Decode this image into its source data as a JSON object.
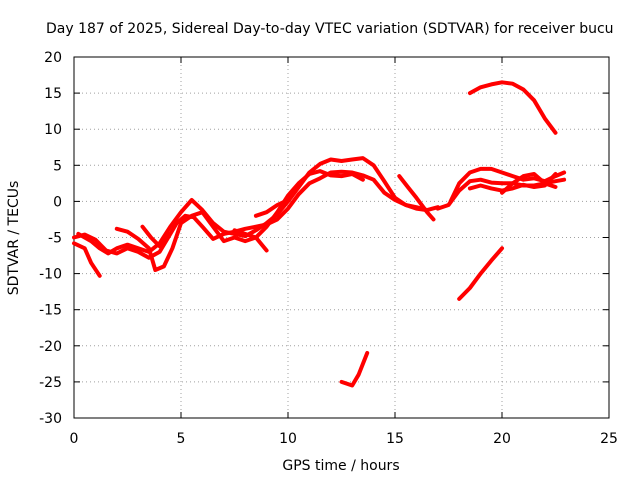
{
  "chart_data": {
    "type": "line",
    "title": "Day 187 of 2025, Sidereal Day-to-day VTEC variation (SDTVAR) for receiver bucu",
    "xlabel": "GPS time / hours",
    "ylabel": "SDTVAR / TECUs",
    "xlim": [
      0,
      25
    ],
    "ylim": [
      -30,
      20
    ],
    "xticks": [
      0,
      5,
      10,
      15,
      20,
      25
    ],
    "yticks": [
      -30,
      -25,
      -20,
      -15,
      -10,
      -5,
      0,
      5,
      10,
      15,
      20
    ],
    "grid": true,
    "color": "#ff0000",
    "series": [
      {
        "name": "trace-1",
        "points": [
          [
            0.0,
            -5.8
          ],
          [
            0.5,
            -6.5
          ],
          [
            0.8,
            -8.5
          ],
          [
            1.2,
            -10.3
          ]
        ]
      },
      {
        "name": "trace-2",
        "points": [
          [
            0.0,
            -5.0
          ],
          [
            0.5,
            -4.6
          ],
          [
            1.0,
            -5.3
          ],
          [
            1.5,
            -6.8
          ],
          [
            2.0,
            -7.2
          ],
          [
            2.5,
            -6.5
          ],
          [
            3.0,
            -7.0
          ],
          [
            3.5,
            -7.8
          ],
          [
            4.0,
            -7.0
          ],
          [
            4.4,
            -5.0
          ],
          [
            4.8,
            -3.0
          ],
          [
            5.2,
            -2.0
          ],
          [
            5.6,
            -2.2
          ],
          [
            6.0,
            -3.5
          ],
          [
            6.5,
            -5.2
          ],
          [
            7.0,
            -4.5
          ],
          [
            7.5,
            -4.2
          ],
          [
            8.0,
            -3.8
          ],
          [
            8.5,
            -3.5
          ],
          [
            9.0,
            -3.2
          ],
          [
            9.5,
            -2.5
          ],
          [
            10.0,
            -1.0
          ],
          [
            10.5,
            1.0
          ],
          [
            11.0,
            2.5
          ],
          [
            11.5,
            3.2
          ],
          [
            12.0,
            4.0
          ],
          [
            12.5,
            4.1
          ],
          [
            13.0,
            4.0
          ],
          [
            13.5,
            3.6
          ],
          [
            14.0,
            3.0
          ],
          [
            14.5,
            1.2
          ],
          [
            15.0,
            0.2
          ],
          [
            15.5,
            -0.5
          ],
          [
            16.0,
            -0.8
          ],
          [
            16.5,
            -1.2
          ],
          [
            17.0,
            -0.8
          ]
        ]
      },
      {
        "name": "trace-3",
        "points": [
          [
            0.2,
            -4.5
          ],
          [
            0.8,
            -5.5
          ],
          [
            1.2,
            -6.5
          ],
          [
            1.6,
            -7.2
          ],
          [
            2.0,
            -6.5
          ],
          [
            2.5,
            -6.0
          ],
          [
            3.0,
            -6.5
          ],
          [
            3.5,
            -7.0
          ],
          [
            4.0,
            -5.8
          ],
          [
            4.5,
            -3.5
          ],
          [
            5.0,
            -1.5
          ],
          [
            5.5,
            0.2
          ],
          [
            6.0,
            -1.2
          ],
          [
            6.5,
            -3.0
          ],
          [
            7.0,
            -4.2
          ],
          [
            7.5,
            -4.5
          ],
          [
            8.0,
            -4.8
          ],
          [
            8.5,
            -4.0
          ],
          [
            9.0,
            -3.0
          ],
          [
            9.5,
            -1.8
          ],
          [
            10.0,
            0.0
          ],
          [
            10.5,
            2.0
          ],
          [
            11.0,
            4.0
          ],
          [
            11.5,
            5.2
          ],
          [
            12.0,
            5.8
          ],
          [
            12.5,
            5.6
          ],
          [
            13.0,
            5.8
          ],
          [
            13.5,
            6.0
          ],
          [
            14.0,
            5.0
          ],
          [
            14.5,
            2.8
          ],
          [
            15.0,
            0.5
          ],
          [
            15.5,
            -0.5
          ],
          [
            16.0,
            -1.0
          ],
          [
            16.5,
            -1.2
          ]
        ]
      },
      {
        "name": "trace-4",
        "points": [
          [
            2.0,
            -3.8
          ],
          [
            2.5,
            -4.2
          ],
          [
            3.0,
            -5.2
          ],
          [
            3.5,
            -6.5
          ],
          [
            3.8,
            -9.5
          ],
          [
            4.2,
            -9.0
          ],
          [
            4.6,
            -6.5
          ],
          [
            5.0,
            -3.0
          ],
          [
            5.5,
            -2.0
          ],
          [
            6.0,
            -1.5
          ],
          [
            6.5,
            -3.5
          ],
          [
            7.0,
            -5.5
          ],
          [
            7.5,
            -5.0
          ],
          [
            8.0,
            -5.5
          ],
          [
            8.5,
            -5.0
          ],
          [
            9.0,
            -3.5
          ],
          [
            9.5,
            -1.5
          ],
          [
            10.0,
            0.8
          ],
          [
            10.5,
            2.5
          ],
          [
            11.0,
            3.8
          ],
          [
            11.5,
            4.2
          ],
          [
            12.0,
            3.6
          ],
          [
            12.5,
            3.5
          ],
          [
            13.0,
            3.8
          ],
          [
            13.5,
            3.0
          ]
        ]
      },
      {
        "name": "trace-5",
        "points": [
          [
            3.2,
            -3.5
          ],
          [
            3.6,
            -5.0
          ],
          [
            4.0,
            -6.2
          ],
          [
            4.4,
            -4.5
          ]
        ]
      },
      {
        "name": "trace-6",
        "points": [
          [
            7.5,
            -4.0
          ],
          [
            8.0,
            -4.5
          ],
          [
            8.5,
            -5.0
          ],
          [
            9.0,
            -6.8
          ]
        ]
      },
      {
        "name": "trace-7",
        "points": [
          [
            8.5,
            -2.0
          ],
          [
            9.0,
            -1.5
          ],
          [
            9.5,
            -0.5
          ],
          [
            10.0,
            0.2
          ]
        ]
      },
      {
        "name": "trace-8",
        "points": [
          [
            15.2,
            3.5
          ],
          [
            15.6,
            2.0
          ],
          [
            16.0,
            0.5
          ],
          [
            16.5,
            -1.5
          ],
          [
            16.8,
            -2.5
          ]
        ]
      },
      {
        "name": "trace-9",
        "points": [
          [
            17.0,
            -1.0
          ],
          [
            17.5,
            -0.5
          ],
          [
            18.0,
            1.5
          ],
          [
            18.5,
            2.8
          ],
          [
            19.0,
            3.0
          ],
          [
            19.5,
            2.6
          ],
          [
            20.0,
            2.5
          ],
          [
            20.5,
            2.5
          ],
          [
            21.0,
            2.2
          ],
          [
            21.5,
            2.2
          ],
          [
            22.0,
            2.5
          ],
          [
            22.5,
            2.8
          ],
          [
            22.9,
            3.0
          ]
        ]
      },
      {
        "name": "trace-10",
        "points": [
          [
            17.6,
            0.0
          ],
          [
            18.0,
            2.5
          ],
          [
            18.5,
            4.0
          ],
          [
            19.0,
            4.5
          ],
          [
            19.5,
            4.5
          ],
          [
            20.0,
            4.0
          ],
          [
            20.5,
            3.5
          ],
          [
            21.0,
            3.0
          ],
          [
            21.5,
            3.2
          ],
          [
            22.0,
            2.8
          ],
          [
            22.5,
            3.5
          ],
          [
            22.9,
            4.0
          ]
        ]
      },
      {
        "name": "trace-11",
        "points": [
          [
            18.5,
            1.8
          ],
          [
            19.0,
            2.2
          ],
          [
            19.5,
            1.8
          ],
          [
            20.0,
            1.5
          ],
          [
            20.5,
            1.8
          ],
          [
            21.0,
            2.3
          ],
          [
            21.5,
            2.0
          ],
          [
            22.0,
            2.2
          ],
          [
            22.5,
            3.8
          ]
        ]
      },
      {
        "name": "trace-12",
        "points": [
          [
            20.0,
            1.2
          ],
          [
            20.5,
            2.5
          ],
          [
            21.0,
            3.5
          ],
          [
            21.5,
            3.8
          ],
          [
            22.0,
            2.5
          ],
          [
            22.5,
            2.0
          ]
        ]
      },
      {
        "name": "trace-13",
        "points": [
          [
            18.5,
            15.0
          ],
          [
            19.0,
            15.8
          ],
          [
            19.5,
            16.2
          ],
          [
            20.0,
            16.5
          ],
          [
            20.5,
            16.3
          ],
          [
            21.0,
            15.5
          ],
          [
            21.5,
            14.0
          ],
          [
            22.0,
            11.5
          ],
          [
            22.5,
            9.5
          ]
        ]
      },
      {
        "name": "trace-14",
        "points": [
          [
            18.0,
            -13.5
          ],
          [
            18.5,
            -12.0
          ],
          [
            19.0,
            -10.0
          ],
          [
            19.5,
            -8.2
          ],
          [
            20.0,
            -6.5
          ]
        ]
      },
      {
        "name": "trace-15",
        "points": [
          [
            12.5,
            -25.0
          ],
          [
            13.0,
            -25.5
          ],
          [
            13.3,
            -24.0
          ],
          [
            13.7,
            -21.0
          ]
        ]
      }
    ]
  }
}
